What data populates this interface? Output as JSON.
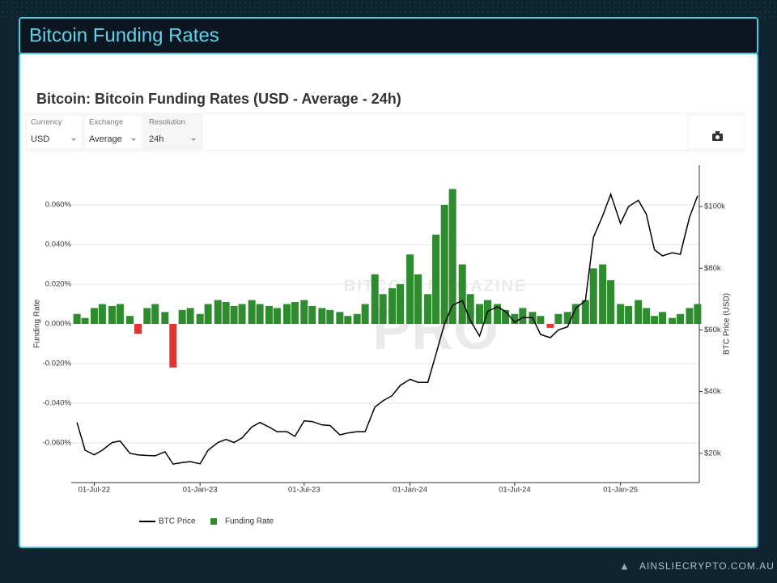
{
  "header": {
    "title": "Bitcoin Funding Rates"
  },
  "controls": [
    {
      "label": "Currency",
      "value": "USD"
    },
    {
      "label": "Exchange",
      "value": "Average"
    },
    {
      "label": "Resolution",
      "value": "24h"
    }
  ],
  "watermark": [
    "BITCOIN MAGAZINE",
    "PRO"
  ],
  "footer": {
    "brand": "AINSLIECRYPTO.COM.AU"
  },
  "chart_data": {
    "type": "bar-line",
    "title": "Bitcoin: Bitcoin Funding Rates (USD - Average - 24h)",
    "y_label": "Funding Rate",
    "y2_label": "BTC Price (USD)",
    "x": [
      "2022-06-01",
      "2022-06-15",
      "2022-07-01",
      "2022-07-15",
      "2022-08-01",
      "2022-08-15",
      "2022-09-01",
      "2022-09-15",
      "2022-10-01",
      "2022-10-15",
      "2022-11-01",
      "2022-11-15",
      "2022-12-01",
      "2022-12-15",
      "2023-01-01",
      "2023-01-15",
      "2023-02-01",
      "2023-02-15",
      "2023-03-01",
      "2023-03-15",
      "2023-04-01",
      "2023-04-15",
      "2023-05-01",
      "2023-05-15",
      "2023-06-01",
      "2023-06-15",
      "2023-07-01",
      "2023-07-15",
      "2023-08-01",
      "2023-08-15",
      "2023-09-01",
      "2023-09-15",
      "2023-10-01",
      "2023-10-15",
      "2023-11-01",
      "2023-11-15",
      "2023-12-01",
      "2023-12-15",
      "2024-01-01",
      "2024-01-15",
      "2024-02-01",
      "2024-02-15",
      "2024-03-01",
      "2024-03-15",
      "2024-04-01",
      "2024-04-15",
      "2024-05-01",
      "2024-05-15",
      "2024-06-01",
      "2024-06-15",
      "2024-07-01",
      "2024-07-15",
      "2024-08-01",
      "2024-08-15",
      "2024-09-01",
      "2024-09-15",
      "2024-10-01",
      "2024-10-15",
      "2024-11-01",
      "2024-11-15",
      "2024-12-01",
      "2024-12-15",
      "2025-01-01",
      "2025-01-15",
      "2025-02-01",
      "2025-02-15",
      "2025-03-01",
      "2025-03-15",
      "2025-04-01",
      "2025-04-15",
      "2025-05-01",
      "2025-05-15"
    ],
    "series": [
      {
        "name": "BTC Price",
        "type": "line",
        "axis": "y2",
        "color": "#000000",
        "values": [
          30000,
          21000,
          19500,
          21000,
          23500,
          24000,
          20000,
          19500,
          19300,
          19200,
          20500,
          16500,
          17000,
          17300,
          16600,
          21000,
          23500,
          24500,
          23500,
          25000,
          28500,
          30000,
          28500,
          27000,
          27000,
          25500,
          30500,
          30300,
          29200,
          29000,
          26000,
          26600,
          27000,
          27000,
          35000,
          37000,
          38700,
          42000,
          44000,
          43000,
          43000,
          52000,
          62000,
          68000,
          69500,
          63000,
          58000,
          66000,
          67500,
          66000,
          62500,
          64000,
          64000,
          58500,
          57500,
          60000,
          61000,
          67000,
          69500,
          90000,
          97000,
          104000,
          94500,
          100000,
          102000,
          97500,
          86000,
          84000,
          85000,
          84500,
          96500,
          103500
        ]
      },
      {
        "name": "Funding Rate",
        "type": "bar",
        "color": "#2e8b2e",
        "negative_color": "#e03535",
        "values": [
          0.005,
          0.003,
          0.008,
          0.01,
          0.009,
          0.01,
          0.004,
          -0.005,
          0.008,
          0.01,
          0.006,
          -0.022,
          0.007,
          0.008,
          0.005,
          0.01,
          0.012,
          0.011,
          0.009,
          0.01,
          0.012,
          0.01,
          0.009,
          0.008,
          0.01,
          0.011,
          0.012,
          0.009,
          0.008,
          0.007,
          0.006,
          0.004,
          0.005,
          0.01,
          0.025,
          0.015,
          0.018,
          0.02,
          0.035,
          0.025,
          0.015,
          0.045,
          0.06,
          0.068,
          0.03,
          0.015,
          0.01,
          0.012,
          0.01,
          0.007,
          0.005,
          0.008,
          0.006,
          0.004,
          -0.002,
          0.005,
          0.006,
          0.01,
          0.012,
          0.028,
          0.03,
          0.022,
          0.01,
          0.009,
          0.012,
          0.008,
          0.004,
          0.006,
          0.003,
          0.005,
          0.008,
          0.01
        ]
      }
    ],
    "xlim": [
      "2022-05-22",
      "2025-05-18"
    ],
    "xticks": [
      {
        "value": "2022-07-01",
        "label": "01-Jul-22"
      },
      {
        "value": "2023-01-01",
        "label": "01-Jan-23"
      },
      {
        "value": "2023-07-01",
        "label": "01-Jul-23"
      },
      {
        "value": "2024-01-01",
        "label": "01-Jan-24"
      },
      {
        "value": "2024-07-01",
        "label": "01-Jul-24"
      },
      {
        "value": "2025-01-01",
        "label": "01-Jan-25"
      }
    ],
    "ylim": [
      -0.08,
      0.08
    ],
    "yticks": [
      {
        "value": -0.06,
        "label": "-0.060%"
      },
      {
        "value": -0.04,
        "label": "-0.040%"
      },
      {
        "value": -0.02,
        "label": "-0.020%"
      },
      {
        "value": 0,
        "label": "0.000%"
      },
      {
        "value": 0.02,
        "label": "0.020%"
      },
      {
        "value": 0.04,
        "label": "0.040%"
      },
      {
        "value": 0.06,
        "label": "0.060%"
      }
    ],
    "y2lim": [
      10500,
      113400
    ],
    "y2ticks": [
      {
        "value": 20000,
        "label": "$20k"
      },
      {
        "value": 40000,
        "label": "$40k"
      },
      {
        "value": 60000,
        "label": "$60k"
      },
      {
        "value": 80000,
        "label": "$80k"
      },
      {
        "value": 100000,
        "label": "$100k"
      }
    ],
    "grid": true,
    "legend": "bottom"
  }
}
